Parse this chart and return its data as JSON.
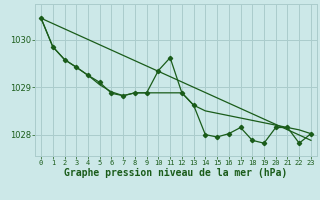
{
  "title": "Graphe pression niveau de la mer (hPa)",
  "bg_color": "#cce8e8",
  "grid_color": "#aacccc",
  "line_color": "#1a5c1a",
  "marker_color": "#1a5c1a",
  "xlim": [
    -0.5,
    23.5
  ],
  "ylim": [
    1027.55,
    1030.75
  ],
  "yticks": [
    1028,
    1029,
    1030
  ],
  "xticks": [
    0,
    1,
    2,
    3,
    4,
    5,
    6,
    7,
    8,
    9,
    10,
    11,
    12,
    13,
    14,
    15,
    16,
    17,
    18,
    19,
    20,
    21,
    22,
    23
  ],
  "series1": [
    1030.45,
    1029.85,
    1029.58,
    1029.42,
    1029.25,
    1029.1,
    1028.87,
    1028.82,
    1028.88,
    1028.88,
    1029.35,
    1029.62,
    1028.88,
    1028.62,
    1028.0,
    1027.95,
    1028.02,
    1028.15,
    1027.88,
    1027.82,
    1028.15,
    1028.15,
    1027.82,
    1028.02
  ],
  "series2": [
    1030.45,
    1029.85,
    1029.58,
    1029.42,
    1029.25,
    1029.05,
    1028.9,
    1028.82,
    1028.88,
    1028.88,
    1028.88,
    1028.88,
    1028.88,
    1028.62,
    1028.5,
    1028.45,
    1028.4,
    1028.35,
    1028.3,
    1028.25,
    1028.2,
    1028.15,
    1028.1,
    1028.02
  ],
  "series3_x": [
    0,
    23
  ],
  "series3_y": [
    1030.45,
    1027.88
  ],
  "xlabel_fontsize": 7,
  "ytick_fontsize": 6,
  "xtick_fontsize": 5
}
